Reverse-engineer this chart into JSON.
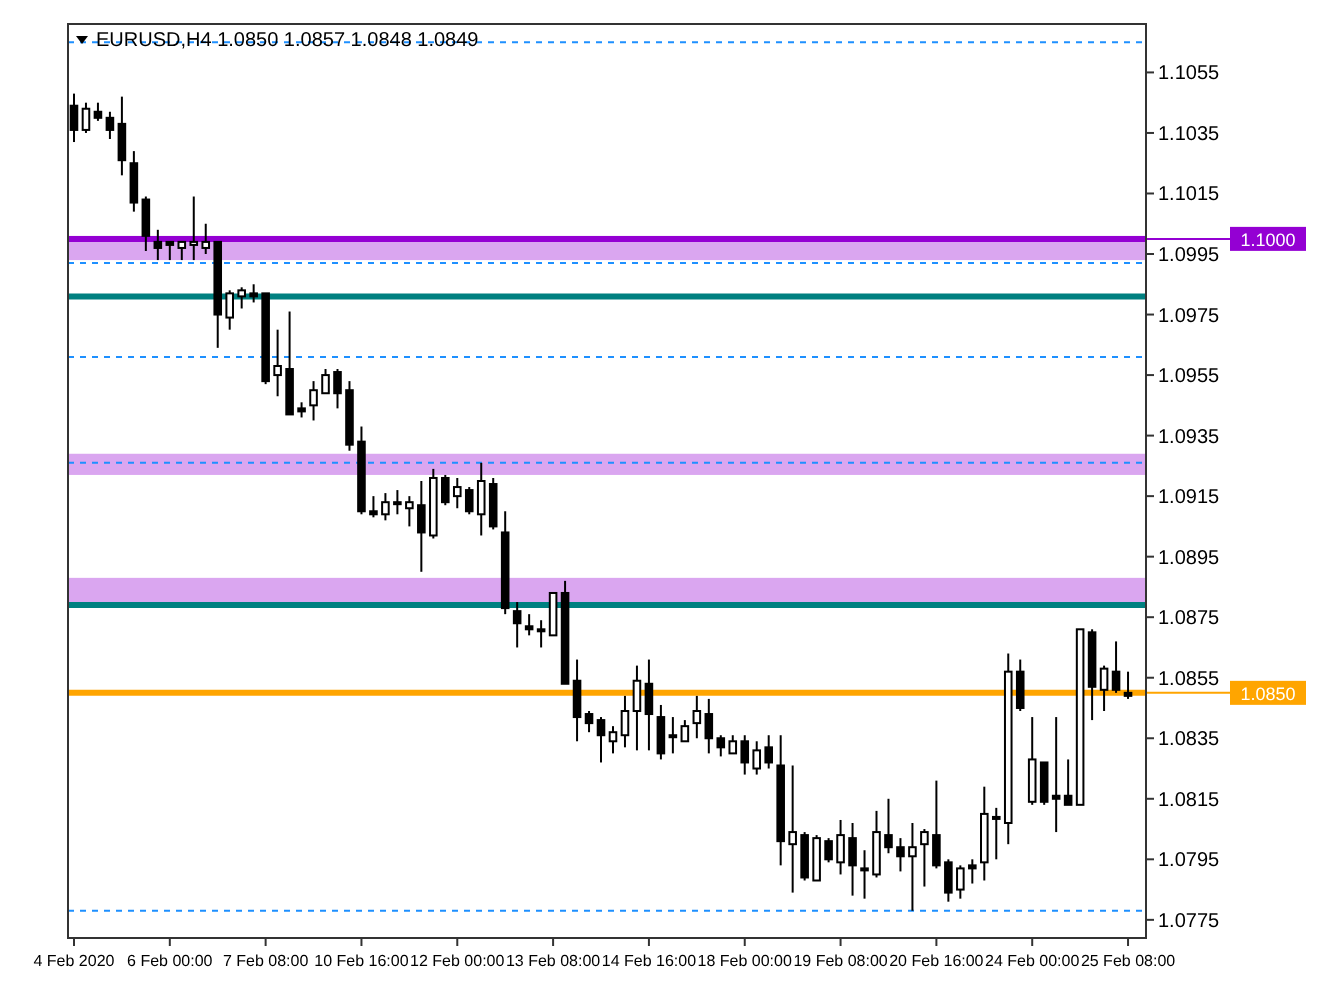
{
  "chart_data": {
    "type": "candlestick",
    "title": "EURUSD,H4  1.0850 1.0857 1.0848 1.0849",
    "color": "#000000",
    "categories": [
      "4 Feb 2020",
      null,
      null,
      null,
      null,
      null,
      null,
      null,
      "6 Feb 00:00",
      null,
      null,
      null,
      null,
      null,
      null,
      null,
      "7 Feb 08:00",
      null,
      null,
      null,
      null,
      null,
      null,
      null,
      "10 Feb 16:00",
      null,
      null,
      null,
      null,
      null,
      null,
      null,
      "12 Feb 00:00",
      null,
      null,
      null,
      null,
      null,
      null,
      null,
      "13 Feb 08:00",
      null,
      null,
      null,
      null,
      null,
      null,
      null,
      "14 Feb 16:00",
      null,
      null,
      null,
      null,
      null,
      null,
      null,
      "18 Feb 00:00",
      null,
      null,
      null,
      null,
      null,
      null,
      null,
      "19 Feb 08:00",
      null,
      null,
      null,
      null,
      null,
      null,
      null,
      "20 Feb 16:00",
      null,
      null,
      null,
      null,
      null,
      null,
      null,
      "24 Feb 00:00",
      null,
      null,
      null,
      null,
      null,
      null,
      null,
      "25 Feb 08:00"
    ],
    "ohlc": [
      [
        1.1044,
        1.1048,
        1.1032,
        1.1036
      ],
      [
        1.1036,
        1.1045,
        1.1035,
        1.1043
      ],
      [
        1.1042,
        1.1045,
        1.1039,
        1.104
      ],
      [
        1.104,
        1.1042,
        1.1033,
        1.1036
      ],
      [
        1.1038,
        1.1047,
        1.1021,
        1.1026
      ],
      [
        1.1025,
        1.1029,
        1.1009,
        1.1012
      ],
      [
        1.1013,
        1.1014,
        1.0996,
        1.1001
      ],
      [
        1.0999,
        1.1003,
        1.0993,
        1.0997
      ],
      [
        1.0999,
        1.0999,
        1.0993,
        1.0998
      ],
      [
        1.0997,
        1.0999,
        1.0993,
        1.0999
      ],
      [
        1.0998,
        1.1014,
        1.0993,
        1.0999
      ],
      [
        1.0997,
        1.1005,
        1.0995,
        1.0999
      ],
      [
        1.0999,
        1.0999,
        1.0964,
        1.0975
      ],
      [
        1.0974,
        1.0983,
        1.097,
        1.0982
      ],
      [
        1.0981,
        1.0984,
        1.0977,
        1.0983
      ],
      [
        1.0982,
        1.0985,
        1.0979,
        1.0981
      ],
      [
        1.0982,
        1.0982,
        1.0952,
        1.0953
      ],
      [
        1.0955,
        1.097,
        1.0948,
        1.0958
      ],
      [
        1.0957,
        1.0976,
        1.0942,
        1.0942
      ],
      [
        1.0944,
        1.0946,
        1.0941,
        1.0943
      ],
      [
        1.0945,
        1.0953,
        1.094,
        1.095
      ],
      [
        1.0949,
        1.0957,
        1.0949,
        1.0955
      ],
      [
        1.0956,
        1.0957,
        1.0944,
        1.0949
      ],
      [
        1.095,
        1.0953,
        1.093,
        1.0932
      ],
      [
        1.0933,
        1.0938,
        1.0909,
        1.091
      ],
      [
        1.091,
        1.0915,
        1.0908,
        1.0909
      ],
      [
        1.0909,
        1.0916,
        1.0907,
        1.0913
      ],
      [
        1.0913,
        1.0917,
        1.0909,
        1.0913
      ],
      [
        1.0911,
        1.0915,
        1.0905,
        1.0913
      ],
      [
        1.0912,
        1.092,
        1.089,
        1.0903
      ],
      [
        1.0902,
        1.0924,
        1.0901,
        1.0921
      ],
      [
        1.0921,
        1.0922,
        1.0912,
        1.0913
      ],
      [
        1.0915,
        1.0921,
        1.0911,
        1.0918
      ],
      [
        1.0917,
        1.0918,
        1.0909,
        1.091
      ],
      [
        1.0909,
        1.0926,
        1.0902,
        1.092
      ],
      [
        1.0919,
        1.0921,
        1.0904,
        1.0905
      ],
      [
        1.0903,
        1.091,
        1.0876,
        1.0878
      ],
      [
        1.0877,
        1.088,
        1.0865,
        1.0873
      ],
      [
        1.0872,
        1.0876,
        1.0869,
        1.0871
      ],
      [
        1.0871,
        1.0874,
        1.0865,
        1.0871
      ],
      [
        1.0869,
        1.0883,
        1.0869,
        1.0883
      ],
      [
        1.0883,
        1.0887,
        1.0853,
        1.0853
      ],
      [
        1.0854,
        1.0861,
        1.0834,
        1.0842
      ],
      [
        1.0843,
        1.0844,
        1.0837,
        1.084
      ],
      [
        1.0841,
        1.0842,
        1.0827,
        1.0836
      ],
      [
        1.0834,
        1.0839,
        1.083,
        1.0837
      ],
      [
        1.0836,
        1.0849,
        1.0832,
        1.0844
      ],
      [
        1.0844,
        1.0859,
        1.0831,
        1.0854
      ],
      [
        1.0853,
        1.0861,
        1.0831,
        1.0843
      ],
      [
        1.0842,
        1.0846,
        1.0828,
        1.083
      ],
      [
        1.0836,
        1.0842,
        1.083,
        1.0836
      ],
      [
        1.0834,
        1.0841,
        1.0834,
        1.0839
      ],
      [
        1.084,
        1.0849,
        1.0835,
        1.0844
      ],
      [
        1.0843,
        1.0848,
        1.083,
        1.0835
      ],
      [
        1.0835,
        1.0836,
        1.0829,
        1.0832
      ],
      [
        1.083,
        1.0836,
        1.083,
        1.0834
      ],
      [
        1.0834,
        1.0836,
        1.0823,
        1.0827
      ],
      [
        1.0825,
        1.0834,
        1.0823,
        1.0831
      ],
      [
        1.0832,
        1.0836,
        1.0825,
        1.0827
      ],
      [
        1.0826,
        1.0836,
        1.0793,
        1.0801
      ],
      [
        1.08,
        1.0826,
        1.0784,
        1.0804
      ],
      [
        1.0803,
        1.0804,
        1.0788,
        1.0789
      ],
      [
        1.0788,
        1.0803,
        1.0788,
        1.0802
      ],
      [
        1.0801,
        1.0802,
        1.0794,
        1.0795
      ],
      [
        1.0794,
        1.0808,
        1.079,
        1.0803
      ],
      [
        1.0802,
        1.0807,
        1.0783,
        1.0793
      ],
      [
        1.0792,
        1.0798,
        1.0782,
        1.0792
      ],
      [
        1.079,
        1.0811,
        1.0789,
        1.0804
      ],
      [
        1.0803,
        1.0815,
        1.0797,
        1.0799
      ],
      [
        1.0799,
        1.0802,
        1.0791,
        1.0796
      ],
      [
        1.0796,
        1.0807,
        1.0778,
        1.0799
      ],
      [
        1.08,
        1.0805,
        1.0786,
        1.0804
      ],
      [
        1.0803,
        1.0821,
        1.0792,
        1.0793
      ],
      [
        1.0794,
        1.0795,
        1.0781,
        1.0784
      ],
      [
        1.0785,
        1.0793,
        1.0782,
        1.0792
      ],
      [
        1.0793,
        1.0795,
        1.0787,
        1.0792
      ],
      [
        1.0794,
        1.0819,
        1.0788,
        1.081
      ],
      [
        1.0809,
        1.0812,
        1.0795,
        1.0809
      ],
      [
        1.0807,
        1.0863,
        1.08,
        1.0857
      ],
      [
        1.0857,
        1.0861,
        1.0844,
        1.0845
      ],
      [
        1.0814,
        1.0842,
        1.0813,
        1.0828
      ],
      [
        1.0827,
        1.0827,
        1.0813,
        1.0814
      ],
      [
        1.0816,
        1.0842,
        1.0804,
        1.0815
      ],
      [
        1.0816,
        1.0828,
        1.0813,
        1.0813
      ],
      [
        1.0813,
        1.0871,
        1.0813,
        1.0871
      ],
      [
        1.087,
        1.0871,
        1.0841,
        1.0852
      ],
      [
        1.0851,
        1.0859,
        1.0844,
        1.0858
      ],
      [
        1.0857,
        1.0867,
        1.085,
        1.0851
      ],
      [
        1.085,
        1.0857,
        1.0848,
        1.0849
      ]
    ],
    "ylim": [
      1.0769,
      1.1071
    ],
    "yticks": [
      1.0775,
      1.0795,
      1.0815,
      1.0835,
      1.0855,
      1.0875,
      1.0895,
      1.0915,
      1.0935,
      1.0955,
      1.0975,
      1.0995,
      1.1015,
      1.1035,
      1.1055
    ],
    "grid": false,
    "bands": [
      {
        "axis": "y",
        "from": 1.0993,
        "to": 1.1001,
        "color": "#9400d3"
      },
      {
        "axis": "y",
        "from": 1.0922,
        "to": 1.0929,
        "color": "#9400d3"
      },
      {
        "axis": "y",
        "from": 1.088,
        "to": 1.0888,
        "color": "#9400d3"
      }
    ],
    "ref_lines": [
      {
        "axis": "y",
        "value": 1.1,
        "label": "1.1000",
        "color": "#9400d3",
        "line_style": "solid"
      },
      {
        "axis": "y",
        "value": 1.0981,
        "color": "#008080",
        "line_style": "solid"
      },
      {
        "axis": "y",
        "value": 1.0879,
        "color": "#008080",
        "line_style": "solid"
      },
      {
        "axis": "y",
        "value": 1.085,
        "label": "1.0850",
        "color": "#ffa500",
        "line_style": "solid"
      },
      {
        "axis": "y",
        "value": 1.1065,
        "color": "#1e90ff",
        "line_style": "dashed"
      },
      {
        "axis": "y",
        "value": 1.0992,
        "color": "#1e90ff",
        "line_style": "dashed"
      },
      {
        "axis": "y",
        "value": 1.0961,
        "color": "#1e90ff",
        "line_style": "dashed"
      },
      {
        "axis": "y",
        "value": 1.0926,
        "color": "#1e90ff",
        "line_style": "dashed"
      },
      {
        "axis": "y",
        "value": 1.0778,
        "color": "#1e90ff",
        "line_style": "dashed"
      }
    ]
  }
}
